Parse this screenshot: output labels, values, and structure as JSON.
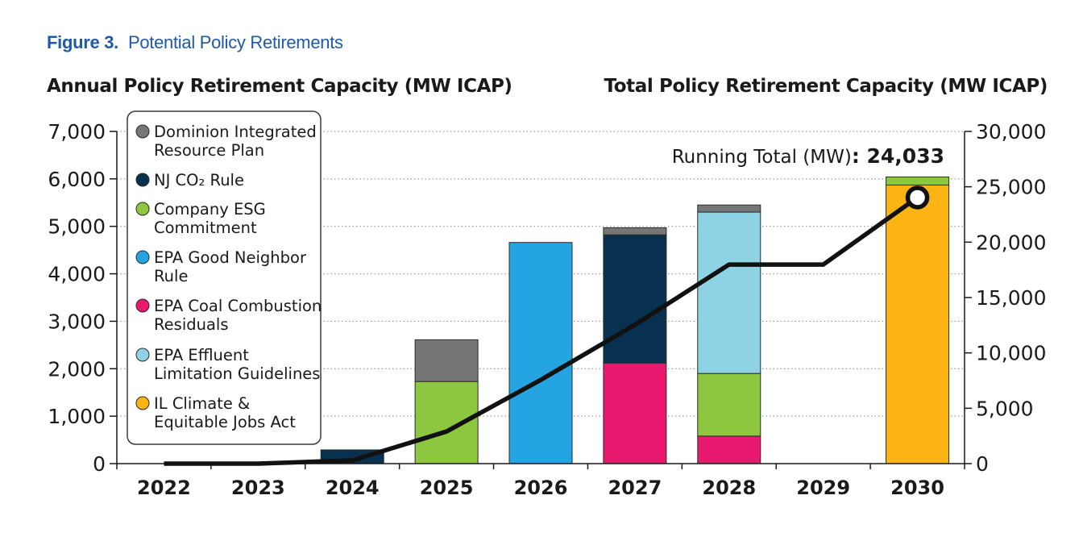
{
  "figure": {
    "number": "Figure 3.",
    "title": "Potential Policy Retirements"
  },
  "chart_data": {
    "type": "bar",
    "stacked": true,
    "left_axis_title": "Annual Policy Retirement Capacity (MW ICAP)",
    "right_axis_title": "Total Policy Retirement Capacity (MW ICAP)",
    "categories": [
      "2022",
      "2023",
      "2024",
      "2025",
      "2026",
      "2027",
      "2028",
      "2029",
      "2030"
    ],
    "ylim_left": [
      0,
      7000
    ],
    "yticks_left": [
      "0",
      "1,000",
      "2,000",
      "3,000",
      "4,000",
      "5,000",
      "6,000",
      "7,000"
    ],
    "ylim_right": [
      0,
      30000
    ],
    "yticks_right": [
      "0",
      "5,000",
      "10,000",
      "15,000",
      "20,000",
      "25,000",
      "30,000"
    ],
    "grid": "dotted horizontal",
    "legend_position": "top-left",
    "series": [
      {
        "name": "IL Climate & Equitable Jobs Act",
        "color": "#fbb414",
        "values": [
          0,
          0,
          0,
          0,
          0,
          0,
          0,
          0,
          5870
        ]
      },
      {
        "name": "EPA Coal Combustion Residuals",
        "color": "#e8196e",
        "values": [
          0,
          0,
          0,
          0,
          0,
          2120,
          580,
          0,
          0
        ]
      },
      {
        "name": "Company ESG Commitment",
        "color": "#8dc63f",
        "values": [
          0,
          0,
          0,
          1730,
          0,
          0,
          1320,
          0,
          170
        ]
      },
      {
        "name": "EPA Effluent Limitation Guidelines",
        "color": "#8ed3e3",
        "values": [
          0,
          0,
          0,
          0,
          0,
          0,
          3400,
          0,
          0
        ]
      },
      {
        "name": "EPA Good Neighbor Rule",
        "color": "#24a4e0",
        "values": [
          0,
          0,
          0,
          0,
          4660,
          0,
          0,
          0,
          0
        ]
      },
      {
        "name": "NJ CO₂ Rule",
        "color": "#07314f",
        "values": [
          0,
          0,
          290,
          0,
          0,
          2700,
          0,
          0,
          0
        ]
      },
      {
        "name": "Dominion Integrated Resource Plan",
        "color": "#767676",
        "values": [
          0,
          0,
          0,
          880,
          0,
          150,
          150,
          0,
          0
        ]
      }
    ],
    "legend_order": [
      "Dominion Integrated Resource Plan",
      "NJ CO₂ Rule",
      "Company ESG Commitment",
      "EPA Good Neighbor Rule",
      "EPA Coal Combustion Residuals",
      "EPA Effluent Limitation Guidelines",
      "IL Climate & Equitable Jobs Act"
    ],
    "running_total": {
      "label": "Running Total (MW)",
      "value_label": "24,033",
      "values": [
        0,
        0,
        290,
        2900,
        7560,
        12530,
        17980,
        17980,
        24033
      ]
    }
  }
}
